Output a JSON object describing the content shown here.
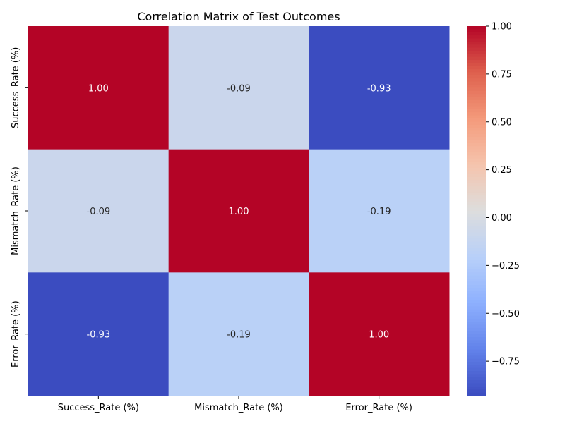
{
  "chart_data": {
    "type": "heatmap",
    "title": "Correlation Matrix of Test Outcomes",
    "xlabel": "",
    "ylabel": "",
    "x_categories": [
      "Success_Rate (%)",
      "Mismatch_Rate (%)",
      "Error_Rate (%)"
    ],
    "y_categories": [
      "Success_Rate (%)",
      "Mismatch_Rate (%)",
      "Error_Rate (%)"
    ],
    "values": [
      [
        1.0,
        -0.09,
        -0.93
      ],
      [
        -0.09,
        1.0,
        -0.19
      ],
      [
        -0.93,
        -0.19,
        1.0
      ]
    ],
    "value_format": "2 decimals",
    "colormap": "coolwarm",
    "colorbar": {
      "vmin": -0.93,
      "vmax": 1.0,
      "ticks": [
        -0.75,
        -0.5,
        -0.25,
        0.0,
        0.25,
        0.5,
        0.75,
        1.0
      ],
      "tick_labels": [
        "−0.75",
        "−0.50",
        "−0.25",
        "0.00",
        "0.25",
        "0.50",
        "0.75",
        "1.00"
      ]
    },
    "annotations_shown": true,
    "grid": false
  }
}
